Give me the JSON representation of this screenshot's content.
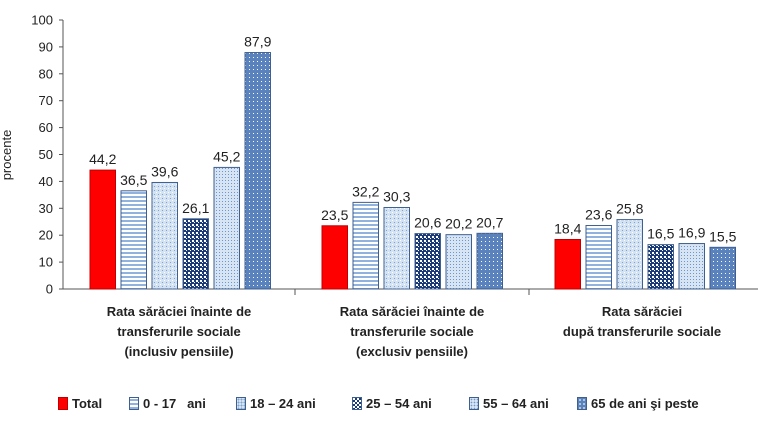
{
  "chart_data": {
    "type": "bar",
    "ylabel": "procente",
    "ylim": [
      0,
      100
    ],
    "yticks": [
      0,
      10,
      20,
      30,
      40,
      50,
      60,
      70,
      80,
      90,
      100
    ],
    "grid": false,
    "legend_placement": "bottom",
    "categories": [
      [
        "Rata sărăciei înainte de",
        "transferurile sociale",
        "(inclusiv pensiile)"
      ],
      [
        "Rata sărăciei înainte de",
        "transferurile sociale",
        "(exclusiv pensiile)"
      ],
      [
        "Rata sărăciei",
        "după transferurile sociale"
      ]
    ],
    "series": [
      {
        "name": "Total",
        "values": [
          44.2,
          23.5,
          18.4
        ],
        "labels": [
          "44,2",
          "23,5",
          "18,4"
        ],
        "pattern": "solid-red"
      },
      {
        "name": "0 - 17   ani",
        "values": [
          36.5,
          32.2,
          23.6
        ],
        "labels": [
          "36,5",
          "32,2",
          "23,6"
        ],
        "pattern": "horizontal-lines"
      },
      {
        "name": "18 – 24 ani",
        "values": [
          39.6,
          30.3,
          25.8
        ],
        "labels": [
          "39,6",
          "30,3",
          "25,8"
        ],
        "pattern": "light-dots"
      },
      {
        "name": "25 – 54 ani",
        "values": [
          26.1,
          20.6,
          16.5
        ],
        "labels": [
          "26,1",
          "20,6",
          "16,5"
        ],
        "pattern": "dark-checker"
      },
      {
        "name": "55 – 64 ani",
        "values": [
          45.2,
          20.2,
          16.9
        ],
        "labels": [
          "45,2",
          "20,2",
          "16,9"
        ],
        "pattern": "fine-grid"
      },
      {
        "name": "65 de ani şi peste",
        "values": [
          87.9,
          20.7,
          15.5
        ],
        "labels": [
          "87,9",
          "20,7",
          "15,5"
        ],
        "pattern": "blue-dots"
      }
    ],
    "colors": {
      "total": "#ff0000",
      "bar_border": "#3f5f8f",
      "blue_light": "#c6d9ef",
      "blue_pale": "#dbe8f4",
      "blue_dark": "#1f3d7a",
      "blue_mid": "#5b83bd"
    }
  }
}
